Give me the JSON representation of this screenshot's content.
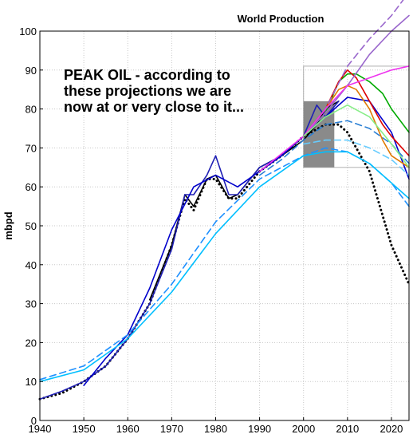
{
  "chart_data": {
    "type": "line",
    "title": "World Production",
    "xlabel": "",
    "ylabel": "mbpd",
    "xlim": [
      1940,
      2024
    ],
    "ylim": [
      0,
      100
    ],
    "xticks": [
      1940,
      1950,
      1960,
      1970,
      1980,
      1990,
      2000,
      2010,
      2020
    ],
    "yticks": [
      0,
      10,
      20,
      30,
      40,
      50,
      60,
      70,
      80,
      90,
      100
    ],
    "grid": true,
    "annotation": {
      "lines": [
        "PEAK OIL - according to",
        "these projections we are",
        "now at or very close to it..."
      ]
    },
    "inset_region": {
      "x": [
        2000,
        2024
      ],
      "y": [
        65,
        91
      ]
    },
    "series": [
      {
        "color": "#000000",
        "style": "dotted",
        "x": [
          1940,
          1945,
          1950,
          1955,
          1960,
          1965,
          1970,
          1973,
          1975,
          1978,
          1980,
          1983,
          1985,
          1990,
          1995,
          2000,
          2005,
          2008,
          2010,
          2015,
          2020,
          2024
        ],
        "y": [
          5.5,
          7,
          10,
          14,
          21,
          30,
          45,
          57,
          54,
          62,
          62,
          57,
          57,
          64,
          68,
          73,
          76,
          76,
          74,
          64,
          45,
          35
        ]
      },
      {
        "color": "#000000",
        "style": "solid",
        "x": [
          1965,
          1970,
          1973,
          1975,
          1978,
          1980,
          1983,
          1985,
          1990,
          1995,
          2000,
          2003,
          2005,
          2008
        ],
        "y": [
          31,
          45,
          58,
          55,
          62,
          63,
          57,
          58,
          65,
          68,
          72,
          76,
          80,
          82
        ]
      },
      {
        "color": "#1f1fb4",
        "style": "solid",
        "x": [
          1940,
          1945,
          1950,
          1955,
          1960,
          1965,
          1970,
          1973,
          1975,
          1978,
          1980,
          1983,
          1985,
          1990,
          1995,
          2000,
          2003,
          2005,
          2008
        ],
        "y": [
          5.5,
          7.5,
          10,
          14,
          21,
          30,
          44,
          58,
          58,
          63,
          68,
          58,
          58,
          65,
          68,
          73,
          81,
          78,
          82
        ]
      },
      {
        "color": "#0000cc",
        "style": "solid",
        "x": [
          1950,
          1955,
          1960,
          1965,
          1970,
          1975,
          1980,
          1985,
          1990,
          1995,
          2000,
          2005,
          2010,
          2015,
          2020,
          2024
        ],
        "y": [
          9,
          16,
          22,
          34,
          49,
          60,
          63,
          60,
          64,
          68,
          73,
          78,
          83,
          82,
          74,
          62
        ]
      },
      {
        "color": "#1e90ff",
        "style": "dashed",
        "x": [
          1940,
          1950,
          1960,
          1970,
          1980,
          1990,
          2000,
          2005,
          2010,
          2015,
          2020,
          2024
        ],
        "y": [
          10.5,
          14,
          22,
          35,
          51,
          62,
          68,
          70,
          69,
          66,
          61,
          55
        ]
      },
      {
        "color": "#00bfff",
        "style": "solid",
        "x": [
          1940,
          1950,
          1960,
          1970,
          1980,
          1990,
          2000,
          2005,
          2010,
          2015,
          2020,
          2024
        ],
        "y": [
          10,
          13,
          21,
          33,
          48,
          60,
          68,
          69,
          69,
          66,
          61,
          57
        ]
      },
      {
        "color": "#2a7fd4",
        "style": "dashed",
        "x": [
          1990,
          1995,
          2000,
          2005,
          2010,
          2015,
          2020,
          2024
        ],
        "y": [
          63,
          67,
          72,
          76,
          77,
          75,
          71,
          66
        ]
      },
      {
        "color": "#00aa00",
        "style": "solid",
        "x": [
          2000,
          2005,
          2008,
          2010,
          2012,
          2015,
          2018,
          2020,
          2024
        ],
        "y": [
          73,
          79,
          87,
          89,
          89,
          87,
          84,
          80,
          74
        ]
      },
      {
        "color": "#dd0000",
        "style": "solid",
        "x": [
          2000,
          2005,
          2008,
          2010,
          2012,
          2015,
          2018,
          2020,
          2024
        ],
        "y": [
          73,
          80,
          87,
          90,
          88,
          82,
          76,
          73,
          68
        ]
      },
      {
        "color": "#e07800",
        "style": "solid",
        "x": [
          2000,
          2005,
          2008,
          2010,
          2012,
          2015,
          2018,
          2020,
          2024
        ],
        "y": [
          73,
          80,
          85,
          86,
          85,
          80,
          72,
          68,
          65
        ]
      },
      {
        "color": "#9966cc",
        "style": "dashed",
        "x": [
          2000,
          2005,
          2010,
          2015,
          2020,
          2024
        ],
        "y": [
          73,
          80,
          91,
          98,
          104,
          110
        ]
      },
      {
        "color": "#9966cc",
        "style": "solid",
        "x": [
          2000,
          2005,
          2010,
          2015,
          2020,
          2024
        ],
        "y": [
          73,
          79,
          86,
          94,
          100,
          104
        ]
      },
      {
        "color": "#ee33ee",
        "style": "solid",
        "x": [
          1990,
          2000,
          2005,
          2010,
          2015,
          2020,
          2024
        ],
        "y": [
          64,
          73,
          80,
          86,
          88,
          90,
          91
        ]
      },
      {
        "color": "#88ee88",
        "style": "solid",
        "x": [
          2000,
          2005,
          2010,
          2015,
          2020,
          2024
        ],
        "y": [
          73,
          78,
          81,
          78,
          71,
          65
        ]
      },
      {
        "color": "#66ccff",
        "style": "dashed",
        "x": [
          2000,
          2005,
          2010,
          2015,
          2020,
          2024
        ],
        "y": [
          71,
          72,
          72,
          70,
          67,
          63
        ]
      }
    ]
  }
}
